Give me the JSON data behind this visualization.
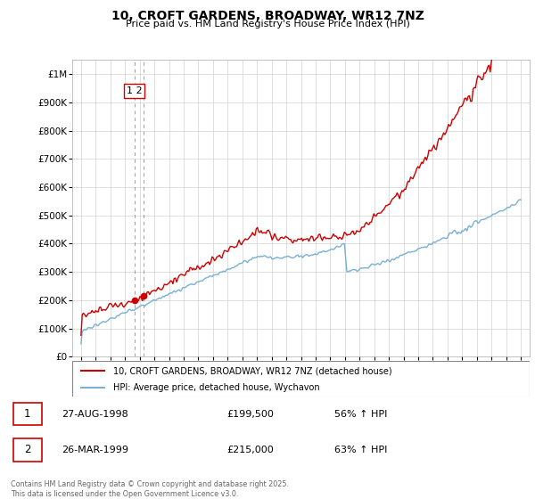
{
  "title": "10, CROFT GARDENS, BROADWAY, WR12 7NZ",
  "subtitle": "Price paid vs. HM Land Registry's House Price Index (HPI)",
  "legend_line1": "10, CROFT GARDENS, BROADWAY, WR12 7NZ (detached house)",
  "legend_line2": "HPI: Average price, detached house, Wychavon",
  "property_color": "#cc0000",
  "hpi_color": "#7ab0d4",
  "sale1_date": "27-AUG-1998",
  "sale1_price": "£199,500",
  "sale1_hpi": "56% ↑ HPI",
  "sale2_date": "26-MAR-1999",
  "sale2_price": "£215,000",
  "sale2_hpi": "63% ↑ HPI",
  "footer": "Contains HM Land Registry data © Crown copyright and database right 2025.\nThis data is licensed under the Open Government Licence v3.0.",
  "ylim": [
    0,
    1050000
  ],
  "yticks": [
    0,
    100000,
    200000,
    300000,
    400000,
    500000,
    600000,
    700000,
    800000,
    900000,
    1000000
  ],
  "x_start_year": 1995,
  "x_end_year": 2025
}
